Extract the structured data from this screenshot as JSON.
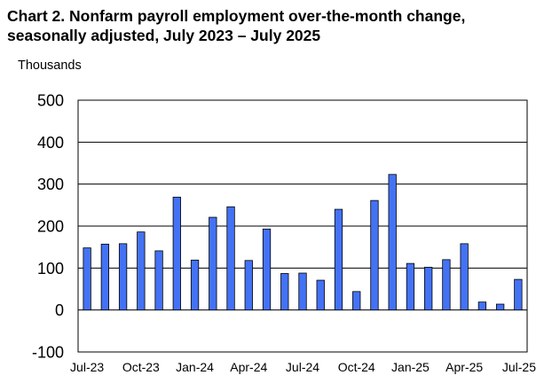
{
  "chart_data": {
    "type": "bar",
    "title_lines": [
      "Chart 2. Nonfarm payroll employment over-the-month change,",
      "seasonally adjusted, July 2023 – July 2025"
    ],
    "ylabel": "Thousands",
    "xlabel": "",
    "ylim": [
      -100,
      500
    ],
    "yticks": [
      -100,
      0,
      100,
      200,
      300,
      400,
      500
    ],
    "grid": "horizontal",
    "legend": "none",
    "bar_color": "#4472f4",
    "bar_stroke": "#000000",
    "categories": [
      "Jul-23",
      "Aug-23",
      "Sep-23",
      "Oct-23",
      "Nov-23",
      "Dec-23",
      "Jan-24",
      "Feb-24",
      "Mar-24",
      "Apr-24",
      "May-24",
      "Jun-24",
      "Jul-24",
      "Aug-24",
      "Sep-24",
      "Oct-24",
      "Nov-24",
      "Dec-24",
      "Jan-25",
      "Feb-25",
      "Mar-25",
      "Apr-25",
      "May-25",
      "Jun-25",
      "Jul-25"
    ],
    "tick_labels": [
      {
        "index": 0,
        "label": "Jul-23"
      },
      {
        "index": 3,
        "label": "Oct-23"
      },
      {
        "index": 6,
        "label": "Jan-24"
      },
      {
        "index": 9,
        "label": "Apr-24"
      },
      {
        "index": 12,
        "label": "Jul-24"
      },
      {
        "index": 15,
        "label": "Oct-24"
      },
      {
        "index": 18,
        "label": "Jan-25"
      },
      {
        "index": 21,
        "label": "Apr-25"
      },
      {
        "index": 24,
        "label": "Jul-25"
      }
    ],
    "values": [
      148,
      157,
      158,
      186,
      141,
      269,
      119,
      221,
      246,
      118,
      193,
      87,
      88,
      71,
      240,
      44,
      261,
      323,
      111,
      102,
      120,
      158,
      19,
      14,
      73
    ]
  }
}
